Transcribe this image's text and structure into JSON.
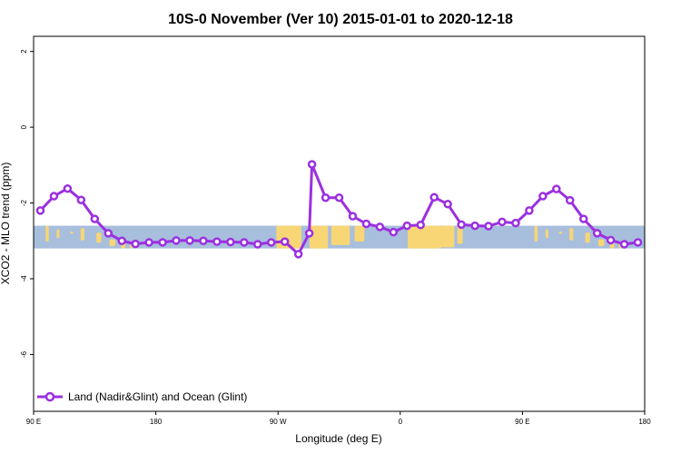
{
  "chart_data": {
    "type": "line",
    "title": "10S-0 November (Ver 10)   2015-01-01 to 2020-12-18",
    "xlabel": "Longitude (deg E)",
    "ylabel": "XCO2 - MLO trend (ppm)",
    "xlim": [
      90,
      540
    ],
    "ylim": [
      -7.5,
      2.4
    ],
    "x_ticks": [
      {
        "value": 90,
        "label": "90 E"
      },
      {
        "value": 180,
        "label": "180"
      },
      {
        "value": 270,
        "label": "90 W"
      },
      {
        "value": 360,
        "label": "0"
      },
      {
        "value": 450,
        "label": "90 E"
      },
      {
        "value": 540,
        "label": "180"
      }
    ],
    "y_ticks": [
      {
        "value": 2,
        "label": "2"
      },
      {
        "value": 0,
        "label": "0"
      },
      {
        "value": -2,
        "label": "-2"
      },
      {
        "value": -4,
        "label": "-4"
      },
      {
        "value": -6,
        "label": "-6"
      }
    ],
    "grid": false,
    "legend_position": "bottom-left",
    "series": [
      {
        "name": "Land (Nadir&Glint) and Ocean (Glint)",
        "color": "#9b30e0",
        "x": [
          95,
          105,
          115,
          125,
          135,
          145,
          155,
          165,
          175,
          185,
          195,
          205,
          215,
          225,
          235,
          245,
          255,
          265,
          275,
          285,
          293,
          295,
          305,
          315,
          325,
          335,
          345,
          355,
          365,
          375,
          385,
          395,
          405,
          415,
          425,
          435,
          445,
          455,
          465,
          475,
          485,
          495,
          505,
          515,
          525,
          535
        ],
        "y": [
          -2.2,
          -1.82,
          -1.62,
          -1.92,
          -2.42,
          -2.8,
          -3.0,
          -3.08,
          -3.04,
          -3.04,
          -2.99,
          -2.99,
          -3.0,
          -3.02,
          -3.03,
          -3.04,
          -3.09,
          -3.04,
          -3.02,
          -3.35,
          -2.8,
          -0.98,
          -1.86,
          -1.86,
          -2.35,
          -2.55,
          -2.63,
          -2.77,
          -2.6,
          -2.58,
          -1.85,
          -2.03,
          -2.57,
          -2.6,
          -2.61,
          -2.5,
          -2.53,
          -2.2,
          -1.82,
          -1.63,
          -1.93,
          -2.42,
          -2.8,
          -2.98,
          -3.09,
          -3.04
        ]
      }
    ],
    "map_strip": {
      "y_range": [
        -3.2,
        -2.6
      ],
      "ocean_color": "#a8bedd",
      "land_color": "#f8d675"
    }
  }
}
